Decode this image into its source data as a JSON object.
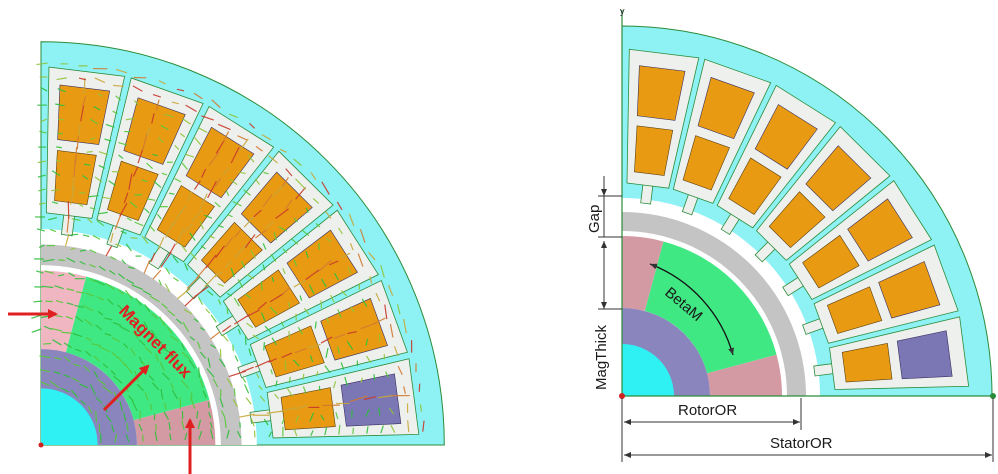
{
  "colors": {
    "stator": "#8ef2f5",
    "outline": "#2a8c3a",
    "slot": "#eef0ee",
    "coil": "#e89b12",
    "coil_other": "#7b76b4",
    "airgap_ring": "#c4c4c4",
    "magnet_pink": "#d49aa4",
    "magnet_pink_light": "#f0b6c2",
    "magnet_green": "#40e884",
    "rotor_core": "#8a85bd",
    "shaft": "#2ff1f4",
    "annotation_red": "#e02020",
    "dimension_line": "#333333"
  },
  "left_panel": {
    "annotation": {
      "text": "Magnet flux"
    },
    "arrow_count": 3,
    "field_vectors": "magnetic flux vector field (green to red)"
  },
  "right_panel": {
    "axis_label": "y",
    "dimensions": {
      "gap": "Gap",
      "mag_thick": "MagThick",
      "beta_m": "BetaM",
      "rotor_or": "RotorOR",
      "stator_or": "StatorOR"
    }
  }
}
